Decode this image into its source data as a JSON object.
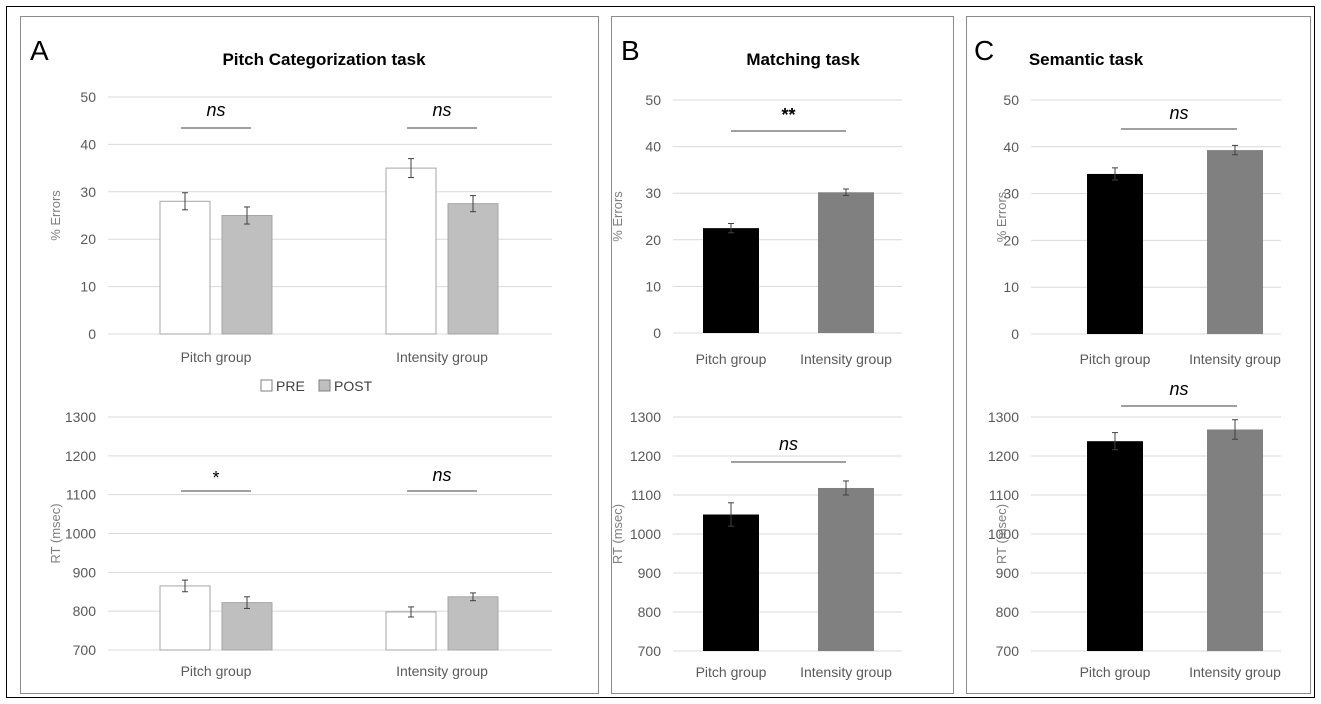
{
  "colors": {
    "pre": "#ffffff",
    "post": "#bfbfbf",
    "pitch_group": "#000000",
    "intensity_group": "#808080",
    "grid": "#d9d9d9",
    "tick_text": "#595959"
  },
  "panels": [
    {
      "letter": "A",
      "title": "Pitch Categorization task",
      "legend": [
        "PRE",
        "POST"
      ]
    },
    {
      "letter": "B",
      "title": "Matching task"
    },
    {
      "letter": "C",
      "title": "Semantic task"
    }
  ],
  "chart_data": [
    {
      "id": "A-errors",
      "panel": "A",
      "type": "bar",
      "ylabel": "% Errors",
      "ylim": [
        0,
        50
      ],
      "yticks": [
        0,
        10,
        20,
        30,
        40,
        50
      ],
      "grid": true,
      "categories": [
        "Pitch group",
        "Intensity group"
      ],
      "series": [
        {
          "name": "PRE",
          "values": [
            28,
            35
          ],
          "errors": [
            1.8,
            2.0
          ]
        },
        {
          "name": "POST",
          "values": [
            25,
            27.5
          ],
          "errors": [
            1.8,
            1.7
          ]
        }
      ],
      "annotations": [
        "ns",
        "ns"
      ]
    },
    {
      "id": "A-rt",
      "panel": "A",
      "type": "bar",
      "ylabel": "RT (msec)",
      "ylim": [
        700,
        1300
      ],
      "yticks": [
        700,
        800,
        900,
        1000,
        1100,
        1200,
        1300
      ],
      "grid": true,
      "categories": [
        "Pitch group",
        "Intensity group"
      ],
      "series": [
        {
          "name": "PRE",
          "values": [
            865,
            798
          ],
          "errors": [
            15,
            13
          ]
        },
        {
          "name": "POST",
          "values": [
            822,
            837
          ],
          "errors": [
            15,
            10
          ]
        }
      ],
      "annotations": [
        "*",
        "ns"
      ]
    },
    {
      "id": "B-errors",
      "panel": "B",
      "type": "bar",
      "ylabel": "% Errors",
      "ylim": [
        0,
        50
      ],
      "yticks": [
        0,
        10,
        20,
        30,
        40,
        50
      ],
      "grid": true,
      "categories": [
        "Pitch group",
        "Intensity group"
      ],
      "values": [
        22.5,
        30.2
      ],
      "errors": [
        1.0,
        0.7
      ],
      "annotation": "**"
    },
    {
      "id": "B-rt",
      "panel": "B",
      "type": "bar",
      "ylabel": "RT (msec)",
      "ylim": [
        700,
        1300
      ],
      "yticks": [
        700,
        800,
        900,
        1000,
        1100,
        1200,
        1300
      ],
      "grid": true,
      "categories": [
        "Pitch group",
        "Intensity group"
      ],
      "values": [
        1050,
        1118
      ],
      "errors": [
        30,
        18
      ],
      "annotation": "ns"
    },
    {
      "id": "C-errors",
      "panel": "C",
      "type": "bar",
      "ylabel": "% Errors",
      "ylim": [
        0,
        50
      ],
      "yticks": [
        0,
        10,
        20,
        30,
        40,
        50
      ],
      "grid": true,
      "categories": [
        "Pitch group",
        "Intensity group"
      ],
      "values": [
        34.2,
        39.3
      ],
      "errors": [
        1.3,
        1.0
      ],
      "annotation": "ns"
    },
    {
      "id": "C-rt",
      "panel": "C",
      "type": "bar",
      "ylabel": "RT (msec)",
      "ylim": [
        700,
        1300
      ],
      "yticks": [
        700,
        800,
        900,
        1000,
        1100,
        1200,
        1300
      ],
      "grid": true,
      "categories": [
        "Pitch group",
        "Intensity group"
      ],
      "values": [
        1238,
        1268
      ],
      "errors": [
        22,
        25
      ],
      "annotation": "ns"
    }
  ]
}
